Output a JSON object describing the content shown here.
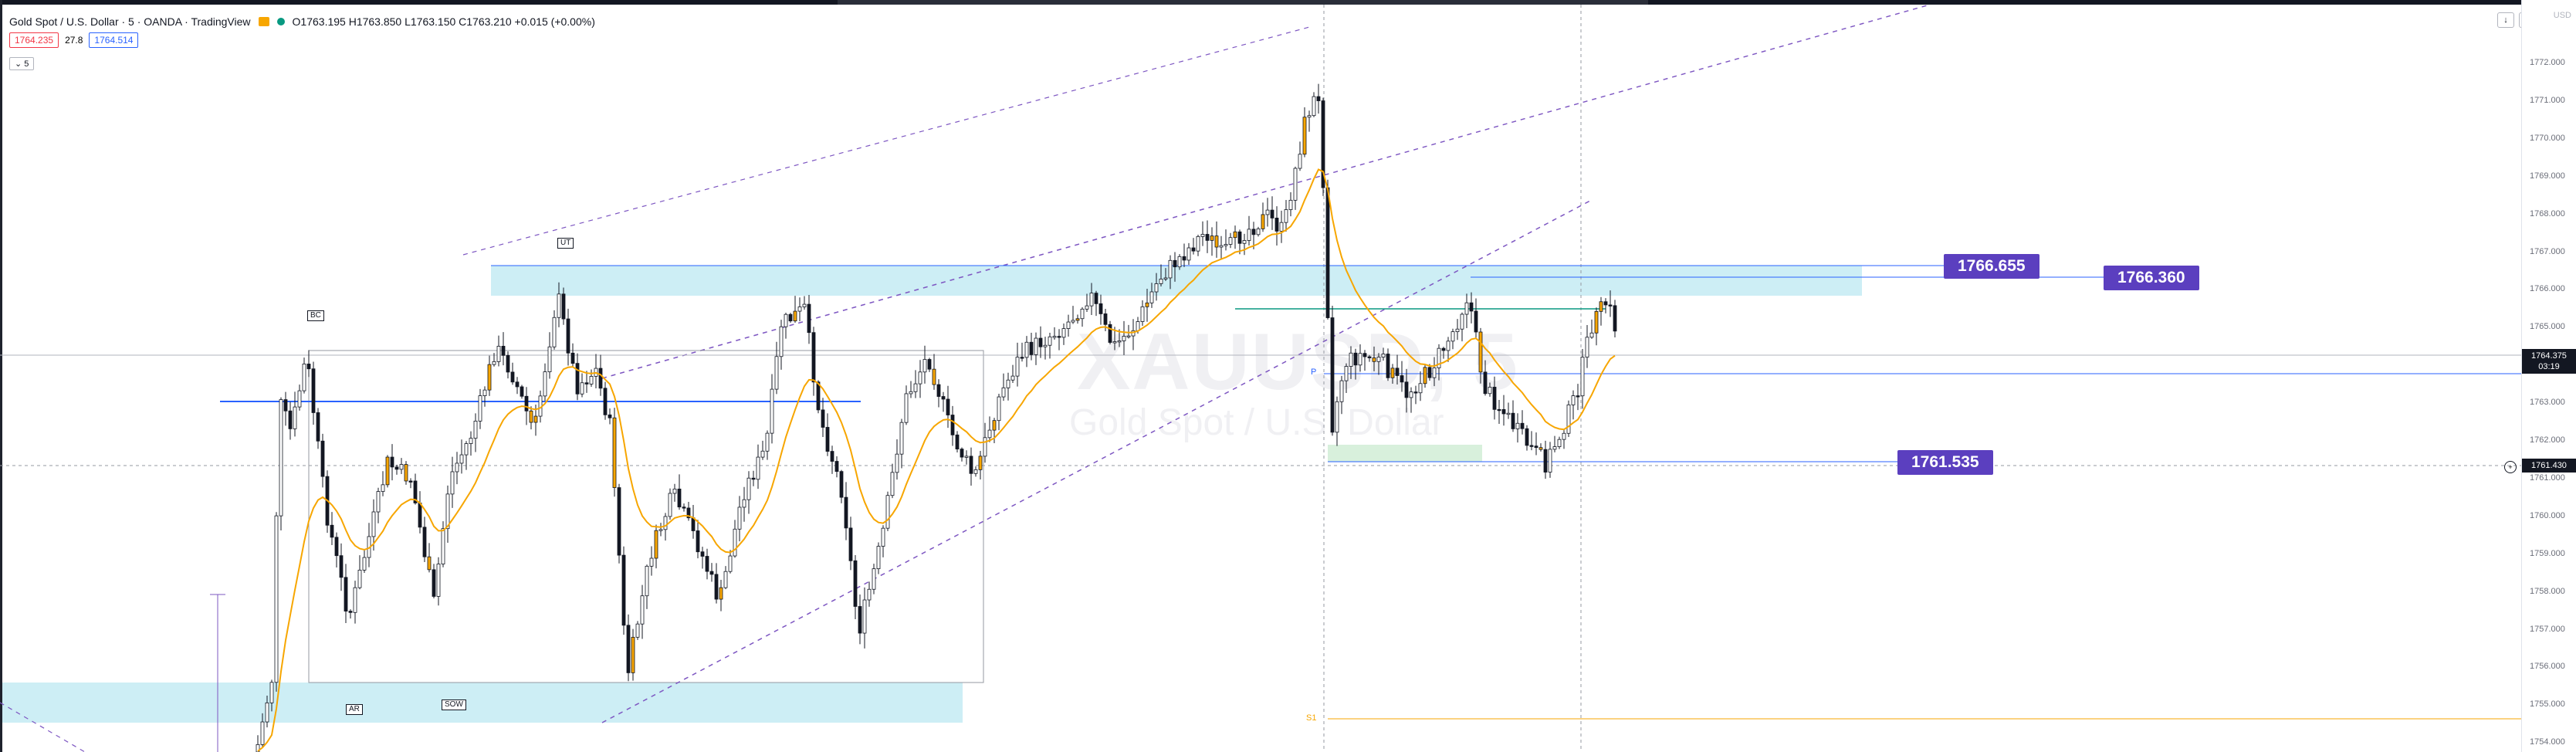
{
  "header": {
    "title": "Gold Spot / U.S. Dollar · 5 · OANDA · TradingView",
    "ohlc": "O1763.195 H1763.850 L1763.150 C1763.210 +0.015 (+0.00%)"
  },
  "quote": {
    "bid": "1764.235",
    "spread": "27.8",
    "ask": "1764.514"
  },
  "indicator_toggle": "5",
  "currency": "USD",
  "watermark": {
    "symbol": "XAUUSD, 5",
    "name": "Gold Spot / U.S. Dollar"
  },
  "labels": {
    "bc": "BC",
    "ut": "UT",
    "ar": "AR",
    "sow": "SOW",
    "p": "P",
    "s": "S1"
  },
  "levels": {
    "l1": "1766.655",
    "l2": "1766.360",
    "l3": "1761.535"
  },
  "axis": {
    "ticks": [
      "1772.000",
      "1771.000",
      "1770.000",
      "1769.000",
      "1768.000",
      "1767.000",
      "1766.000",
      "1765.000",
      "1764.000",
      "1763.000",
      "1762.000",
      "1761.000",
      "1760.000",
      "1759.000",
      "1758.000",
      "1757.000",
      "1756.000",
      "1755.000",
      "1754.000"
    ],
    "current_price": "1764.375",
    "countdown": "03:19",
    "crosshair_price": "1761.430"
  },
  "colors": {
    "zone": "#cdeef5",
    "label": "#5b3fbf",
    "ema": "#f7a600",
    "hline": "#2962ff",
    "candle_up": "#ffffff",
    "candle_down": "#131722"
  }
}
